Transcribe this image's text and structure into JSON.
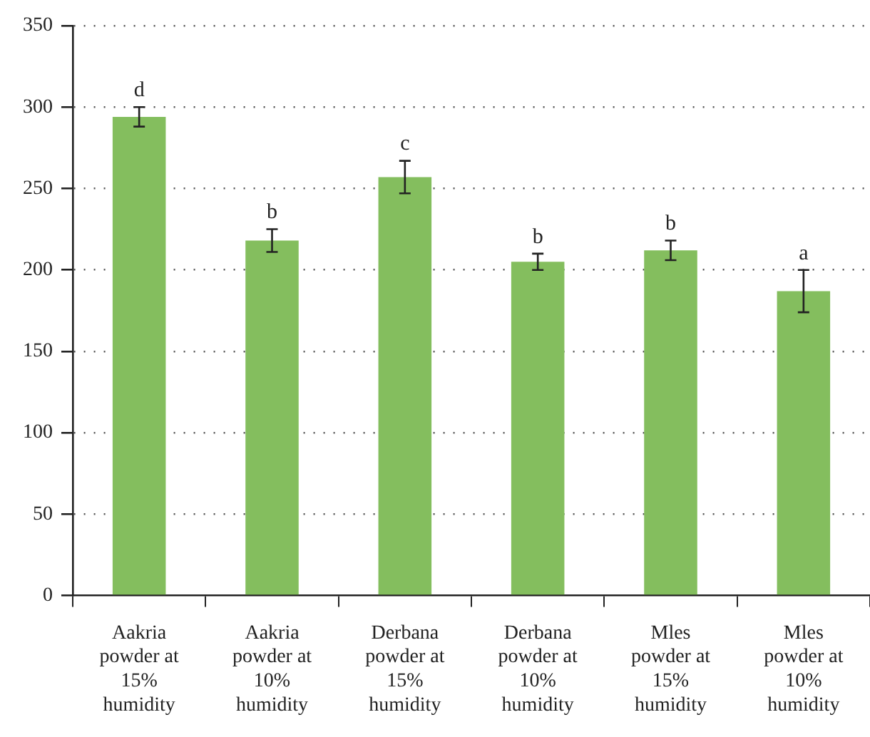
{
  "chart_data": {
    "type": "bar",
    "categories": [
      "Aakria powder at 15% humidity",
      "Aakria powder at 10% humidity",
      "Derbana powder at 15% humidity",
      "Derbana powder at 10% humidity",
      "Mles powder at 15% humidity",
      "Mles powder at 10% humidity"
    ],
    "values": [
      294,
      218,
      257,
      205,
      212,
      187
    ],
    "errors": [
      6,
      7,
      10,
      5,
      6,
      13
    ],
    "color": "#84be5e",
    "ylim": [
      0,
      350
    ],
    "yticks": [
      0,
      50,
      100,
      150,
      200,
      250,
      300,
      350
    ],
    "grid": "y",
    "line_style": "dotted",
    "annotations": [
      {
        "text": "d",
        "x": "Aakria powder at 15% humidity",
        "y": 300
      },
      {
        "text": "b",
        "x": "Aakria powder at 10% humidity",
        "y": 225
      },
      {
        "text": "c",
        "x": "Derbana powder at 15% humidity",
        "y": 267
      },
      {
        "text": "b",
        "x": "Derbana powder at 10% humidity",
        "y": 210
      },
      {
        "text": "b",
        "x": "Mles powder at 15% humidity",
        "y": 218
      },
      {
        "text": "a",
        "x": "Mles powder at 10% humidity",
        "y": 200
      }
    ]
  }
}
